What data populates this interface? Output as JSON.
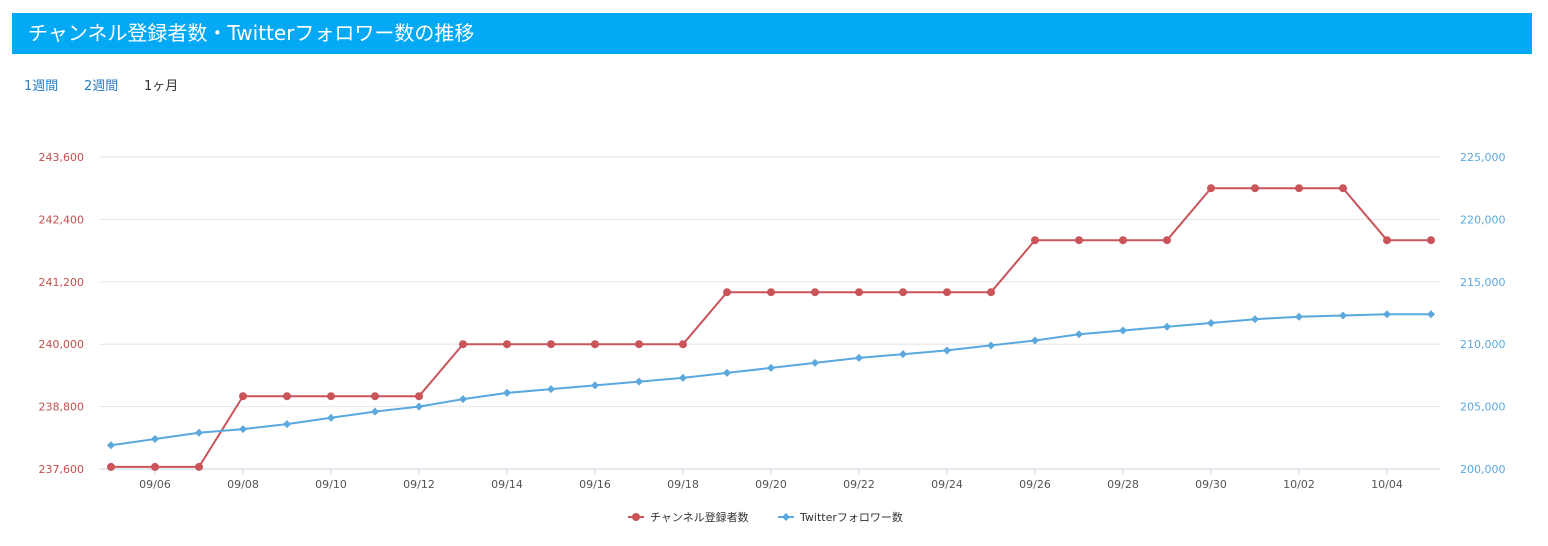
{
  "header": {
    "title": "チャンネル登録者数・Twitterフォロワー数の推移"
  },
  "tabs": [
    {
      "label": "1週間",
      "active": false
    },
    {
      "label": "2週間",
      "active": false
    },
    {
      "label": "1ヶ月",
      "active": true
    }
  ],
  "colors": {
    "header_bg": "#03a9f4",
    "subscribers": "#c9545a",
    "followers": "#5aa8de",
    "link": "#2a7fc4"
  },
  "chart_data": {
    "type": "line",
    "x": [
      "09/05",
      "09/06",
      "09/07",
      "09/08",
      "09/09",
      "09/10",
      "09/11",
      "09/12",
      "09/13",
      "09/14",
      "09/15",
      "09/16",
      "09/17",
      "09/18",
      "09/19",
      "09/20",
      "09/21",
      "09/22",
      "09/23",
      "09/24",
      "09/25",
      "09/26",
      "09/27",
      "09/28",
      "09/29",
      "09/30",
      "10/01",
      "10/02",
      "10/03",
      "10/04",
      "10/05"
    ],
    "xtick_labels": [
      "09/06",
      "09/08",
      "09/10",
      "09/12",
      "09/14",
      "09/16",
      "09/18",
      "09/20",
      "09/22",
      "09/24",
      "09/26",
      "09/28",
      "09/30",
      "10/02",
      "10/04"
    ],
    "series": [
      {
        "name": "チャンネル登録者数",
        "axis": "left",
        "marker": "circle",
        "values": [
          237640,
          237640,
          237640,
          239000,
          239000,
          239000,
          239000,
          239000,
          240000,
          240000,
          240000,
          240000,
          240000,
          240000,
          241000,
          241000,
          241000,
          241000,
          241000,
          241000,
          241000,
          242000,
          242000,
          242000,
          242000,
          243000,
          243000,
          243000,
          243000,
          242000,
          242000
        ]
      },
      {
        "name": "Twitterフォロワー数",
        "axis": "right",
        "marker": "diamond",
        "values": [
          201900,
          202400,
          202900,
          203200,
          203600,
          204100,
          204600,
          205000,
          205600,
          206100,
          206400,
          206700,
          207000,
          207300,
          207700,
          208100,
          208500,
          208900,
          209200,
          209500,
          209900,
          210300,
          210800,
          211100,
          211400,
          211700,
          212000,
          212200,
          212300,
          212400,
          212400
        ]
      }
    ],
    "y_left": {
      "ylim": [
        237600,
        243600
      ],
      "ticks": [
        "237,600",
        "238,800",
        "240,000",
        "241,200",
        "242,400",
        "243,600"
      ]
    },
    "y_right": {
      "ylim": [
        200000,
        225000
      ],
      "ticks": [
        "200,000",
        "205,000",
        "210,000",
        "215,000",
        "220,000",
        "225,000"
      ]
    },
    "grid": true,
    "legend": "bottom-center"
  }
}
